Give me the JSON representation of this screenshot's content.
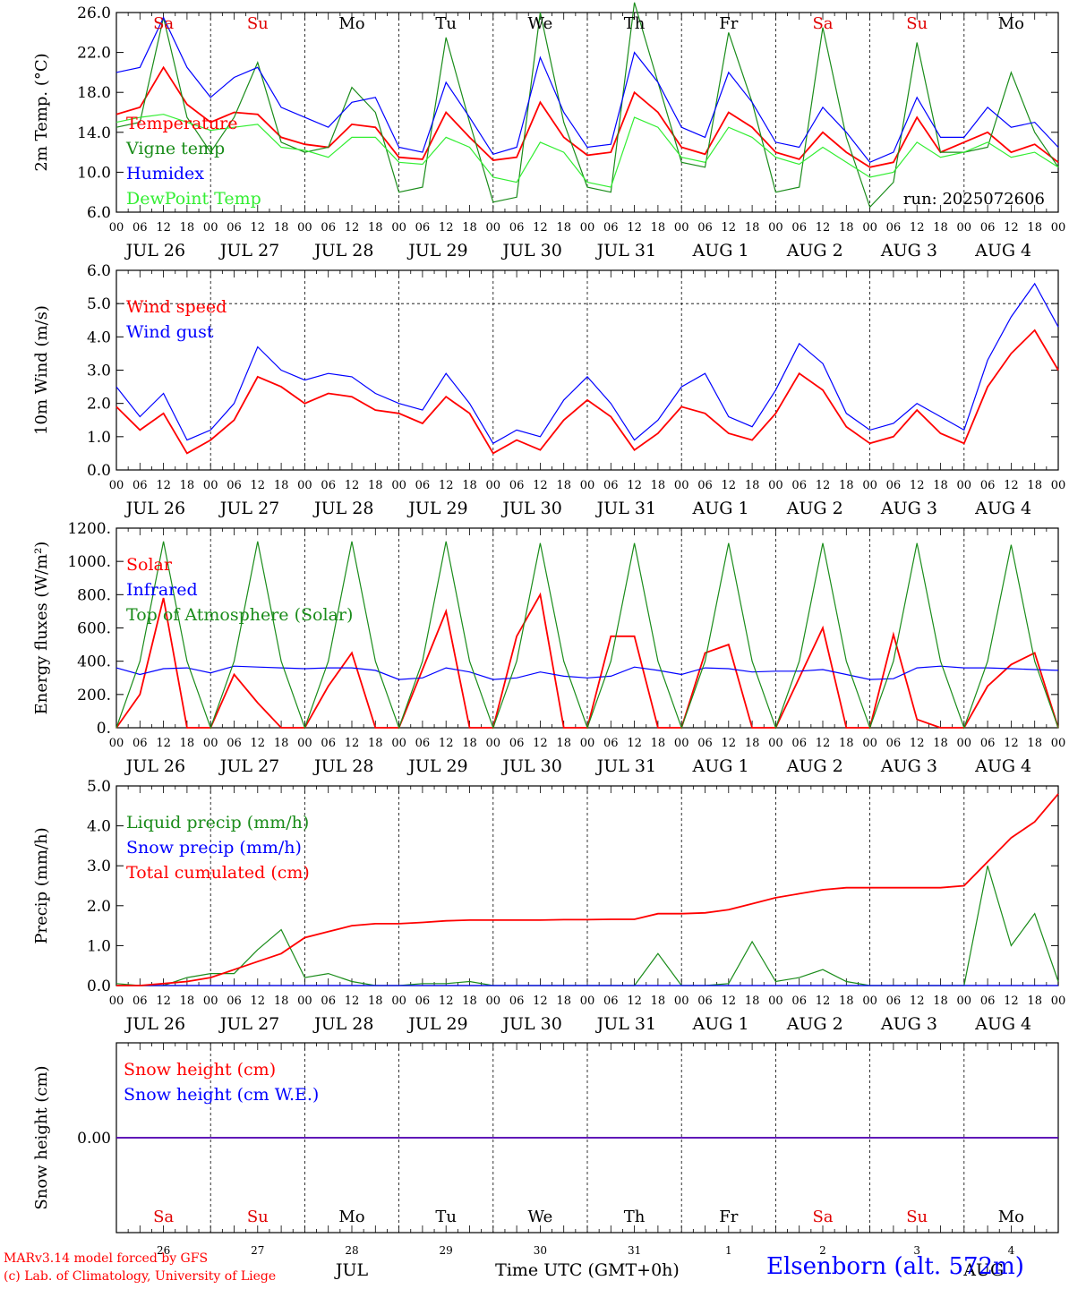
{
  "days_abbrev": [
    "Sa",
    "Su",
    "Mo",
    "Tu",
    "We",
    "Th",
    "Fr",
    "Sa",
    "Su",
    "Mo"
  ],
  "day_colors": [
    "#e00000",
    "#e00000",
    "#000000",
    "#000000",
    "#000000",
    "#000000",
    "#000000",
    "#e00000",
    "#e00000",
    "#000000"
  ],
  "date_labels": [
    "JUL 26",
    "JUL 27",
    "JUL 28",
    "JUL 29",
    "JUL 30",
    "JUL 31",
    "AUG  1",
    "AUG  2",
    "AUG  3",
    "AUG  4"
  ],
  "hour_ticks": [
    "00",
    "06",
    "12",
    "18"
  ],
  "bottom_day_numbers": [
    "26",
    "27",
    "28",
    "29",
    "30",
    "31",
    "1",
    "2",
    "3",
    "4"
  ],
  "bottom_month_left": "JUL",
  "bottom_month_right": "AUG",
  "xlabel": "Time UTC (GMT+0h)",
  "run_label": "run: 2025072606",
  "footer": {
    "line1": "MARv3.14 model forced by GFS",
    "line2": "(c) Lab. of Climatology, University of Liege",
    "station": "Elsenborn (alt. 572m)"
  },
  "colors": {
    "red": "#ff0000",
    "green": "#1a8c1a",
    "blue": "#0000ff",
    "lightgreen": "#33ee33"
  },
  "chart_data": [
    {
      "type": "line",
      "ylabel": "2m Temp. (°C)",
      "yticks": [
        "6.0",
        "10.0",
        "14.0",
        "18.0",
        "22.0",
        "26.0"
      ],
      "ylim": [
        6,
        26
      ],
      "x_hours": [
        0,
        6,
        12,
        18,
        24,
        30,
        36,
        42,
        48,
        54,
        60,
        66,
        72,
        78,
        84,
        90,
        96,
        102,
        108,
        114,
        120,
        126,
        132,
        138,
        144,
        150,
        156,
        162,
        168,
        174,
        180,
        186,
        192,
        198,
        204,
        210,
        216,
        222,
        228,
        234,
        240
      ],
      "series": [
        {
          "name": "Temperature",
          "color": "red",
          "values": [
            15.8,
            16.5,
            20.5,
            16.8,
            15.0,
            16.0,
            15.8,
            13.5,
            12.8,
            12.5,
            14.8,
            14.5,
            11.5,
            11.3,
            16.0,
            13.5,
            11.2,
            11.5,
            17.0,
            13.5,
            11.7,
            12.0,
            18.0,
            16.0,
            12.5,
            11.8,
            16.0,
            14.5,
            12.0,
            11.3,
            14.0,
            12.0,
            10.5,
            11.0,
            15.5,
            12.0,
            13.0,
            14.0,
            12.0,
            12.8,
            11.0
          ]
        },
        {
          "name": "Vigne temp",
          "color": "green",
          "values": [
            14.5,
            15.0,
            25.5,
            15.5,
            12.0,
            15.5,
            21.0,
            13.0,
            12.0,
            12.5,
            18.5,
            16.0,
            8.0,
            8.5,
            23.5,
            15.0,
            7.0,
            7.5,
            26.0,
            15.0,
            8.5,
            8.0,
            27.0,
            19.0,
            11.0,
            10.5,
            24.0,
            17.0,
            8.0,
            8.5,
            24.5,
            13.5,
            6.5,
            9.0,
            23.0,
            12.0,
            12.0,
            12.5,
            20.0,
            14.0,
            10.5
          ]
        },
        {
          "name": "Humidex",
          "color": "blue",
          "values": [
            20.0,
            20.5,
            25.5,
            20.5,
            17.5,
            19.5,
            20.5,
            16.5,
            15.5,
            14.5,
            17.0,
            17.5,
            12.5,
            12.0,
            19.0,
            15.5,
            11.8,
            12.5,
            21.5,
            16.0,
            12.5,
            12.8,
            22.0,
            19.0,
            14.5,
            13.5,
            20.0,
            17.0,
            13.0,
            12.5,
            16.5,
            14.0,
            11.0,
            12.0,
            17.5,
            13.5,
            13.5,
            16.5,
            14.5,
            15.0,
            12.5
          ]
        },
        {
          "name": "DewPoint Temp",
          "color": "lightgreen",
          "values": [
            15.0,
            15.5,
            15.8,
            15.0,
            14.2,
            14.5,
            14.8,
            12.5,
            12.2,
            11.5,
            13.5,
            13.5,
            11.0,
            10.8,
            13.5,
            12.5,
            9.5,
            9.0,
            13.0,
            12.0,
            9.0,
            8.5,
            15.5,
            14.5,
            11.5,
            11.0,
            14.5,
            13.5,
            11.5,
            10.8,
            12.5,
            11.0,
            9.5,
            10.0,
            13.0,
            11.5,
            12.0,
            13.0,
            11.5,
            12.0,
            10.5
          ]
        }
      ]
    },
    {
      "type": "line",
      "ylabel": "10m Wind (m/s)",
      "yticks": [
        "0.0",
        "1.0",
        "2.0",
        "3.0",
        "4.0",
        "5.0",
        "6.0"
      ],
      "ylim": [
        0,
        6
      ],
      "dashed_y": 5,
      "x_hours": [
        0,
        6,
        12,
        18,
        24,
        30,
        36,
        42,
        48,
        54,
        60,
        66,
        72,
        78,
        84,
        90,
        96,
        102,
        108,
        114,
        120,
        126,
        132,
        138,
        144,
        150,
        156,
        162,
        168,
        174,
        180,
        186,
        192,
        198,
        204,
        210,
        216,
        222,
        228,
        234,
        240
      ],
      "series": [
        {
          "name": "Wind speed",
          "color": "red",
          "values": [
            1.9,
            1.2,
            1.7,
            0.5,
            0.9,
            1.5,
            2.8,
            2.5,
            2.0,
            2.3,
            2.2,
            1.8,
            1.7,
            1.4,
            2.2,
            1.7,
            0.5,
            0.9,
            0.6,
            1.5,
            2.1,
            1.6,
            0.6,
            1.1,
            1.9,
            1.7,
            1.1,
            0.9,
            1.7,
            2.9,
            2.4,
            1.3,
            0.8,
            1.0,
            1.8,
            1.1,
            0.8,
            2.5,
            3.5,
            4.2,
            3.0
          ]
        },
        {
          "name": "Wind gust",
          "color": "blue",
          "values": [
            2.5,
            1.6,
            2.3,
            0.9,
            1.2,
            2.0,
            3.7,
            3.0,
            2.7,
            2.9,
            2.8,
            2.3,
            2.0,
            1.8,
            2.9,
            2.0,
            0.8,
            1.2,
            1.0,
            2.1,
            2.8,
            2.0,
            0.9,
            1.5,
            2.5,
            2.9,
            1.6,
            1.3,
            2.4,
            3.8,
            3.2,
            1.7,
            1.2,
            1.4,
            2.0,
            1.6,
            1.2,
            3.3,
            4.6,
            5.6,
            4.3
          ]
        }
      ]
    },
    {
      "type": "line",
      "ylabel": "Energy fluxes (W/m²)",
      "yticks": [
        "0.",
        "200.",
        "400.",
        "600.",
        "800.",
        "1000.",
        "1200."
      ],
      "ylim": [
        0,
        1200
      ],
      "x_hours": [
        0,
        6,
        12,
        18,
        24,
        30,
        36,
        42,
        48,
        54,
        60,
        66,
        72,
        78,
        84,
        90,
        96,
        102,
        108,
        114,
        120,
        126,
        132,
        138,
        144,
        150,
        156,
        162,
        168,
        174,
        180,
        186,
        192,
        198,
        204,
        210,
        216,
        222,
        228,
        234,
        240
      ],
      "series": [
        {
          "name": "Solar",
          "color": "red",
          "values": [
            0,
            200,
            780,
            0,
            0,
            320,
            150,
            0,
            0,
            250,
            450,
            0,
            0,
            350,
            700,
            0,
            0,
            550,
            800,
            0,
            0,
            550,
            550,
            0,
            0,
            450,
            500,
            0,
            0,
            300,
            600,
            0,
            0,
            560,
            50,
            0,
            0,
            250,
            380,
            450,
            0
          ]
        },
        {
          "name": "Infrared",
          "color": "blue",
          "values": [
            360,
            320,
            355,
            360,
            330,
            370,
            365,
            360,
            355,
            360,
            360,
            345,
            290,
            300,
            360,
            335,
            290,
            300,
            335,
            310,
            300,
            310,
            365,
            345,
            320,
            360,
            355,
            335,
            340,
            340,
            350,
            320,
            290,
            295,
            360,
            370,
            360,
            360,
            355,
            350,
            345
          ]
        },
        {
          "name": "Top of Atmosphere (Solar)",
          "color": "green",
          "values": [
            0,
            400,
            1120,
            400,
            0,
            400,
            1120,
            400,
            0,
            400,
            1120,
            400,
            0,
            400,
            1120,
            400,
            0,
            400,
            1110,
            400,
            0,
            400,
            1110,
            400,
            0,
            400,
            1110,
            400,
            0,
            400,
            1110,
            400,
            0,
            400,
            1110,
            400,
            0,
            400,
            1100,
            400,
            0
          ]
        }
      ]
    },
    {
      "type": "line",
      "ylabel": "Precip (mm/h)",
      "yticks": [
        "0.0",
        "1.0",
        "2.0",
        "3.0",
        "4.0",
        "5.0"
      ],
      "ylim": [
        0,
        5
      ],
      "x_hours": [
        0,
        6,
        12,
        18,
        24,
        30,
        36,
        42,
        48,
        54,
        60,
        66,
        72,
        78,
        84,
        90,
        96,
        102,
        108,
        114,
        120,
        126,
        132,
        138,
        144,
        150,
        156,
        162,
        168,
        174,
        180,
        186,
        192,
        198,
        204,
        210,
        216,
        222,
        228,
        234,
        240
      ],
      "series": [
        {
          "name": "Liquid precip (mm/h)",
          "color": "green",
          "values": [
            0.05,
            0,
            0,
            0.2,
            0.3,
            0.3,
            0.9,
            1.4,
            0.2,
            0.3,
            0.1,
            0,
            0,
            0.05,
            0.05,
            0.1,
            0,
            0,
            0,
            0,
            0,
            0,
            0,
            0.8,
            0,
            0,
            0.05,
            1.1,
            0.1,
            0.2,
            0.4,
            0.1,
            0,
            0,
            0,
            0,
            0,
            3.0,
            1.0,
            1.8,
            0.1
          ]
        },
        {
          "name": "Snow precip (mm/h)",
          "color": "blue",
          "values": [
            0,
            0,
            0,
            0,
            0,
            0,
            0,
            0,
            0,
            0,
            0,
            0,
            0,
            0,
            0,
            0,
            0,
            0,
            0,
            0,
            0,
            0,
            0,
            0,
            0,
            0,
            0,
            0,
            0,
            0,
            0,
            0,
            0,
            0,
            0,
            0,
            0,
            0,
            0,
            0,
            0
          ]
        },
        {
          "name": "Total cumulated (cm)",
          "color": "red",
          "values": [
            0,
            0,
            0.05,
            0.1,
            0.2,
            0.4,
            0.6,
            0.8,
            1.2,
            1.35,
            1.5,
            1.55,
            1.55,
            1.58,
            1.62,
            1.64,
            1.64,
            1.64,
            1.64,
            1.65,
            1.65,
            1.66,
            1.66,
            1.8,
            1.8,
            1.82,
            1.9,
            2.05,
            2.2,
            2.3,
            2.4,
            2.45,
            2.45,
            2.45,
            2.45,
            2.45,
            2.5,
            3.1,
            3.7,
            4.1,
            4.8
          ]
        }
      ]
    },
    {
      "type": "line",
      "ylabel": "Snow height (cm)",
      "yticks": [
        "0.00"
      ],
      "ylim": [
        -1,
        1
      ],
      "x_hours": [
        0,
        240
      ],
      "series": [
        {
          "name": "Snow height (cm)",
          "color": "red",
          "values": [
            0,
            0
          ]
        },
        {
          "name": "Snow height (cm W.E.)",
          "color": "blue",
          "values": [
            0,
            0
          ]
        }
      ]
    }
  ]
}
